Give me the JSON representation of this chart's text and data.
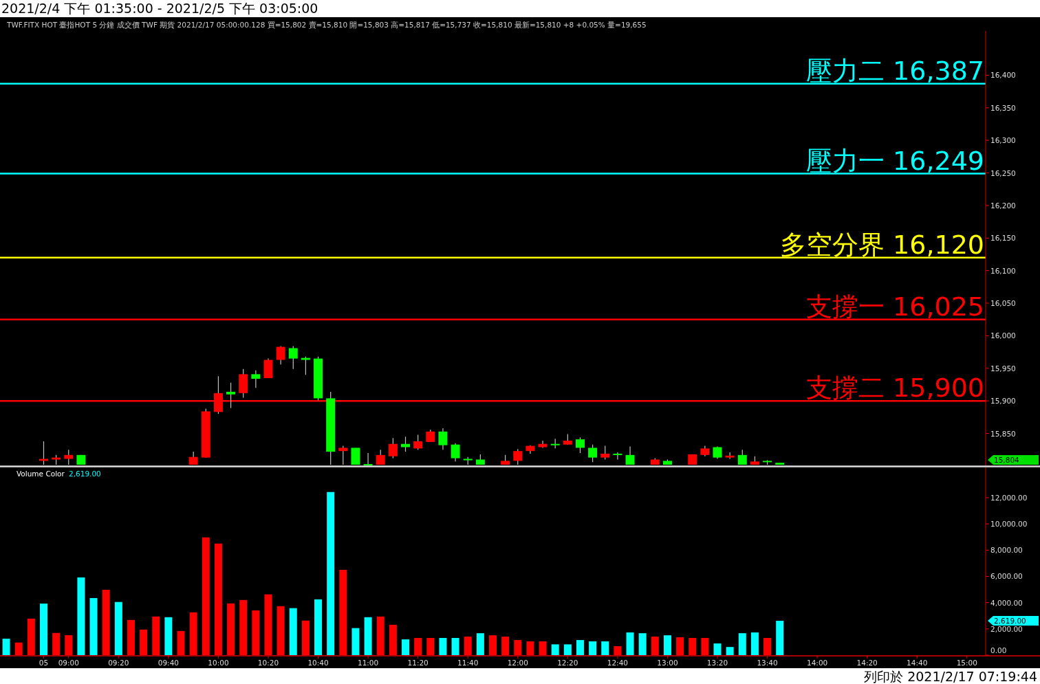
{
  "chart_data": [
    {
      "type": "candlestick",
      "title": "2021/2/4 下午 01:35:00 - 2021/2/5 下午 03:05:00",
      "subtitle": "TWF.FITX HOT  臺指HOT 5 分鐘  成交價  TWF 期貨  2021/2/17 05:00:00.128 買=15,802 賣=15,810 開=15,803 高=15,817 低=15,737 收=15,810 最新=15,810 +8 +0.05% 量=19,655",
      "categories": [
        null,
        null,
        null,
        null,
        null,
        null,
        null,
        null,
        null,
        null,
        null,
        null,
        null,
        null,
        null,
        null,
        null,
        null,
        null,
        null,
        null,
        null,
        null,
        null,
        null,
        null,
        null,
        null,
        null,
        null,
        null,
        null,
        null,
        null,
        null,
        null,
        null,
        null,
        null,
        null,
        null,
        null,
        null,
        null,
        null,
        null,
        null,
        null,
        null,
        null,
        null,
        null,
        null,
        null,
        null,
        null,
        null,
        null,
        null,
        null,
        null,
        null,
        null,
        null,
        null,
        null,
        null,
        null,
        null,
        null,
        null,
        null,
        null,
        null,
        null,
        null,
        null,
        null,
        null
      ],
      "ohlc": [
        null,
        null,
        null,
        [
          15808,
          15838,
          15802,
          15811
        ],
        [
          15810,
          15817,
          15802,
          15813
        ],
        [
          15811,
          15825,
          15802,
          15817
        ],
        [
          15817,
          15817,
          15802,
          15802
        ],
        null,
        null,
        null,
        null,
        null,
        null,
        null,
        null,
        [
          15802,
          15822,
          15802,
          15814
        ],
        [
          15813,
          15888,
          15813,
          15884
        ],
        [
          15883,
          15938,
          15880,
          15912
        ],
        [
          15914,
          15928,
          15889,
          15910
        ],
        [
          15912,
          15949,
          15905,
          15941
        ],
        [
          15941,
          15947,
          15920,
          15934
        ],
        [
          15935,
          15965,
          15935,
          15963
        ],
        [
          15963,
          15984,
          15956,
          15983
        ],
        [
          15981,
          15984,
          15949,
          15965
        ],
        [
          15966,
          15968,
          15940,
          15963
        ],
        [
          15965,
          15968,
          15901,
          15904
        ],
        [
          15904,
          15914,
          15802,
          15822
        ],
        [
          15823,
          15831,
          15802,
          15828
        ],
        [
          15828,
          15828,
          15802,
          15802
        ],
        [
          15803,
          15820,
          15802,
          15802
        ],
        [
          15802,
          15825,
          15802,
          15817
        ],
        [
          15815,
          15843,
          15812,
          15834
        ],
        [
          15834,
          15845,
          15822,
          15829
        ],
        [
          15827,
          15848,
          15825,
          15838
        ],
        [
          15837,
          15856,
          15837,
          15853
        ],
        [
          15853,
          15858,
          15825,
          15832
        ],
        [
          15833,
          15835,
          15807,
          15812
        ],
        [
          15811,
          15814,
          15802,
          15809
        ],
        [
          15810,
          15818,
          15802,
          15802
        ],
        null,
        [
          15802,
          15817,
          15802,
          15808
        ],
        [
          15808,
          15826,
          15802,
          15823
        ],
        [
          15823,
          15832,
          15819,
          15831
        ],
        [
          15829,
          15839,
          15828,
          15834
        ],
        [
          15834,
          15842,
          15827,
          15833
        ],
        [
          15833,
          15849,
          15833,
          15839
        ],
        [
          15841,
          15844,
          15820,
          15828
        ],
        [
          15828,
          15833,
          15806,
          15813
        ],
        [
          15813,
          15831,
          15810,
          15819
        ],
        [
          15819,
          15821,
          15810,
          15817
        ],
        [
          15817,
          15830,
          15802,
          15802
        ],
        null,
        [
          15802,
          15812,
          15802,
          15810
        ],
        [
          15808,
          15810,
          15802,
          15802
        ],
        null,
        [
          15802,
          15818,
          15802,
          15818
        ],
        [
          15817,
          15831,
          15815,
          15827
        ],
        [
          15829,
          15830,
          15811,
          15813
        ],
        [
          15813,
          15821,
          15811,
          15816
        ],
        [
          15817,
          15825,
          15802,
          15802
        ],
        [
          15802,
          15815,
          15802,
          15807
        ],
        [
          15808,
          15809,
          15802,
          15806
        ],
        [
          15805,
          15805,
          15802,
          15802
        ],
        null,
        null,
        null,
        null,
        null,
        null,
        null,
        null,
        null,
        null,
        null,
        null,
        null,
        null,
        null,
        null
      ],
      "colors": [
        null,
        null,
        null,
        "#ff0000",
        "#ff0000",
        "#ff0000",
        "#00ff00",
        null,
        null,
        null,
        null,
        null,
        null,
        null,
        null,
        "#ff0000",
        "#ff0000",
        "#ff0000",
        "#00ff00",
        "#ff0000",
        "#00ff00",
        "#ff0000",
        "#ff0000",
        "#00ff00",
        "#00ff00",
        "#00ff00",
        "#00ff00",
        "#ff0000",
        "#00ff00",
        "#00ff00",
        "#ff0000",
        "#ff0000",
        "#00ff00",
        "#ff0000",
        "#ff0000",
        "#00ff00",
        "#00ff00",
        "#00ff00",
        "#00ff00",
        null,
        "#ff0000",
        "#ff0000",
        "#ff0000",
        "#ff0000",
        "#00ff00",
        "#ff0000",
        "#00ff00",
        "#00ff00",
        "#ff0000",
        "#00ff00",
        "#00ff00",
        null,
        "#ff0000",
        "#00ff00",
        null,
        "#ff0000",
        "#ff0000",
        "#00ff00",
        "#ff0000",
        "#00ff00",
        "#ff0000",
        "#00ff00",
        "#00ff00",
        null,
        null,
        null,
        null,
        null,
        null,
        null,
        null,
        null,
        null,
        null,
        null,
        null,
        null,
        null,
        null
      ],
      "ylim": [
        15801,
        16468
      ],
      "yticks": [
        {
          "value": 15850,
          "label": "15,850"
        },
        {
          "value": 15900,
          "label": "15,900"
        },
        {
          "value": 15950,
          "label": "15,950"
        },
        {
          "value": 16000,
          "label": "16,000"
        },
        {
          "value": 16050,
          "label": "16,050"
        },
        {
          "value": 16100,
          "label": "16,100"
        },
        {
          "value": 16150,
          "label": "16,150"
        },
        {
          "value": 16200,
          "label": "16,200"
        },
        {
          "value": 16250,
          "label": "16,250"
        },
        {
          "value": 16300,
          "label": "16,300"
        },
        {
          "value": 16350,
          "label": "16,350"
        },
        {
          "value": 16400,
          "label": "16,400"
        }
      ],
      "ref_lines": [
        {
          "axis": "y",
          "value": 16387,
          "label": "壓力二 16,387",
          "color": "#00ffff"
        },
        {
          "axis": "y",
          "value": 16249,
          "label": "壓力一 16,249",
          "color": "#00ffff"
        },
        {
          "axis": "y",
          "value": 16120,
          "label": "多空分界 16,120",
          "color": "#ffff00"
        },
        {
          "axis": "y",
          "value": 16025,
          "label": "支撐一 16,025",
          "color": "#ff0000"
        },
        {
          "axis": "y",
          "value": 15900,
          "label": "支撐二 15,900",
          "color": "#ff0000"
        }
      ],
      "annotations": [
        "15,804"
      ],
      "tick_labels": "y",
      "grid": false
    },
    {
      "type": "bar",
      "legend_title": "Volume Color",
      "categories": [
        null,
        null,
        null,
        "05",
        null,
        "09:00",
        null,
        null,
        null,
        "09:20",
        null,
        null,
        null,
        "09:40",
        null,
        null,
        null,
        "10:00",
        null,
        null,
        null,
        "10:20",
        null,
        null,
        null,
        "10:40",
        null,
        null,
        null,
        "11:00",
        null,
        null,
        null,
        "11:20",
        null,
        null,
        null,
        "11:40",
        null,
        null,
        null,
        "12:00",
        null,
        null,
        null,
        "12:20",
        null,
        null,
        null,
        "12:40",
        null,
        null,
        null,
        "13:00",
        null,
        null,
        null,
        "13:20",
        null,
        null,
        null,
        "13:40",
        null,
        null,
        null,
        "14:00",
        null,
        null,
        null,
        "14:20",
        null,
        null,
        null,
        "14:40",
        null,
        null,
        null,
        "15:00",
        null
      ],
      "values": [
        1250,
        960,
        2780,
        3930,
        1690,
        1520,
        5920,
        4350,
        4980,
        4050,
        2680,
        1950,
        2940,
        2890,
        1840,
        3260,
        8970,
        8500,
        3940,
        4200,
        3410,
        4630,
        3730,
        3580,
        2630,
        4250,
        12430,
        6500,
        2060,
        2890,
        2940,
        2310,
        1200,
        1310,
        1310,
        1310,
        1310,
        1410,
        1670,
        1510,
        1410,
        1150,
        1050,
        1050,
        820,
        820,
        1150,
        1050,
        1050,
        680,
        1730,
        1670,
        1410,
        1510,
        1360,
        1310,
        1310,
        890,
        620,
        1670,
        1730,
        1310,
        2619,
        null,
        null,
        null,
        null,
        null,
        null,
        null,
        null,
        null,
        null,
        null,
        null,
        null,
        null,
        null,
        null
      ],
      "colors": [
        "#00ffff",
        "#ff0000",
        "#ff0000",
        "#00ffff",
        "#ff0000",
        "#ff0000",
        "#00ffff",
        "#00ffff",
        "#ff0000",
        "#00ffff",
        "#ff0000",
        "#ff0000",
        "#ff0000",
        "#00ffff",
        "#ff0000",
        "#ff0000",
        "#ff0000",
        "#ff0000",
        "#ff0000",
        "#ff0000",
        "#ff0000",
        "#ff0000",
        "#ff0000",
        "#00ffff",
        "#ff0000",
        "#00ffff",
        "#00ffff",
        "#ff0000",
        "#00ffff",
        "#00ffff",
        "#ff0000",
        "#ff0000",
        "#00ffff",
        "#ff0000",
        "#ff0000",
        "#00ffff",
        "#00ffff",
        "#ff0000",
        "#00ffff",
        "#ff0000",
        "#ff0000",
        "#ff0000",
        "#ff0000",
        "#ff0000",
        "#00ffff",
        "#00ffff",
        "#00ffff",
        "#00ffff",
        "#00ffff",
        "#ff0000",
        "#00ffff",
        "#00ffff",
        "#ff0000",
        "#00ffff",
        "#ff0000",
        "#ff0000",
        "#ff0000",
        "#00ffff",
        "#00ffff",
        "#00ffff",
        "#00ffff",
        "#ff0000",
        "#00ffff",
        null,
        null,
        null,
        null,
        null,
        null,
        null,
        null,
        null,
        null,
        null,
        null,
        null,
        null,
        null,
        null
      ],
      "ylim": [
        0,
        14300
      ],
      "yticks": [
        {
          "value": 0,
          "label": "0.00"
        },
        {
          "value": 2000,
          "label": "2,000.00"
        },
        {
          "value": 4000,
          "label": "4,000.00"
        },
        {
          "value": 6000,
          "label": "6,000.00"
        },
        {
          "value": 8000,
          "label": "8,000.00"
        },
        {
          "value": 10000,
          "label": "10,000.00"
        },
        {
          "value": 12000,
          "label": "12,000.00"
        }
      ],
      "annotations": [
        "2,619.00",
        "2,619.00",
        "列印於 2021/2/17 07:19:44"
      ],
      "grid": false
    }
  ]
}
